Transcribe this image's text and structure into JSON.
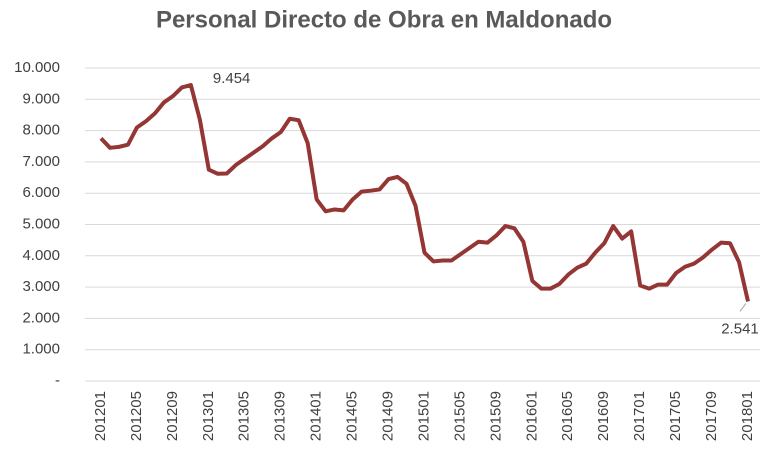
{
  "chart_data": {
    "type": "line",
    "title": "Personal Directo de Obra en Maldonado",
    "categories": [
      "201201",
      null,
      null,
      null,
      "201205",
      null,
      null,
      null,
      "201209",
      null,
      null,
      null,
      "201301",
      null,
      null,
      null,
      "201305",
      null,
      null,
      null,
      "201309",
      null,
      null,
      null,
      "201401",
      null,
      null,
      null,
      "201405",
      null,
      null,
      null,
      "201409",
      null,
      null,
      null,
      "201501",
      null,
      null,
      null,
      "201505",
      null,
      null,
      null,
      "201509",
      null,
      null,
      null,
      "201601",
      null,
      null,
      null,
      "201605",
      null,
      null,
      null,
      "201609",
      null,
      null,
      null,
      "201701",
      null,
      null,
      null,
      "201705",
      null,
      null,
      null,
      "201709",
      null,
      null,
      null,
      "201801"
    ],
    "values": [
      7750,
      7450,
      7480,
      7550,
      8100,
      8300,
      8550,
      8900,
      9100,
      9380,
      9454,
      8350,
      6750,
      6620,
      6630,
      6900,
      7100,
      7300,
      7500,
      7750,
      7950,
      8380,
      8330,
      7600,
      5800,
      5420,
      5480,
      5450,
      5800,
      6050,
      6080,
      6120,
      6450,
      6520,
      6300,
      5600,
      4100,
      3820,
      3850,
      3850,
      4050,
      4250,
      4450,
      4420,
      4650,
      4950,
      4880,
      4450,
      3200,
      2950,
      2950,
      3100,
      3400,
      3620,
      3750,
      4100,
      4400,
      4950,
      4550,
      4780,
      3050,
      2950,
      3080,
      3080,
      3450,
      3650,
      3750,
      3950,
      4200,
      4420,
      4400,
      3800,
      2541
    ],
    "value_labels": [
      null,
      null,
      null,
      null,
      null,
      null,
      null,
      null,
      null,
      null,
      "9.454",
      null,
      null,
      null,
      null,
      null,
      null,
      null,
      null,
      null,
      null,
      null,
      null,
      null,
      null,
      null,
      null,
      null,
      null,
      null,
      null,
      null,
      null,
      null,
      null,
      null,
      null,
      null,
      null,
      null,
      null,
      null,
      null,
      null,
      null,
      null,
      null,
      null,
      null,
      null,
      null,
      null,
      null,
      null,
      null,
      null,
      null,
      null,
      null,
      null,
      null,
      null,
      null,
      null,
      null,
      null,
      null,
      null,
      null,
      null,
      null,
      null,
      "2.541"
    ],
    "color": "#943634",
    "ylim": [
      0,
      10000
    ],
    "yticks": [
      {
        "value": 0,
        "label": "-"
      },
      {
        "value": 1000,
        "label": "1.000"
      },
      {
        "value": 2000,
        "label": "2.000"
      },
      {
        "value": 3000,
        "label": "3.000"
      },
      {
        "value": 4000,
        "label": "4.000"
      },
      {
        "value": 5000,
        "label": "5.000"
      },
      {
        "value": 6000,
        "label": "6.000"
      },
      {
        "value": 7000,
        "label": "7.000"
      },
      {
        "value": 8000,
        "label": "8.000"
      },
      {
        "value": 9000,
        "label": "9.000"
      },
      {
        "value": 10000,
        "label": "10.000"
      }
    ],
    "grid": true
  }
}
